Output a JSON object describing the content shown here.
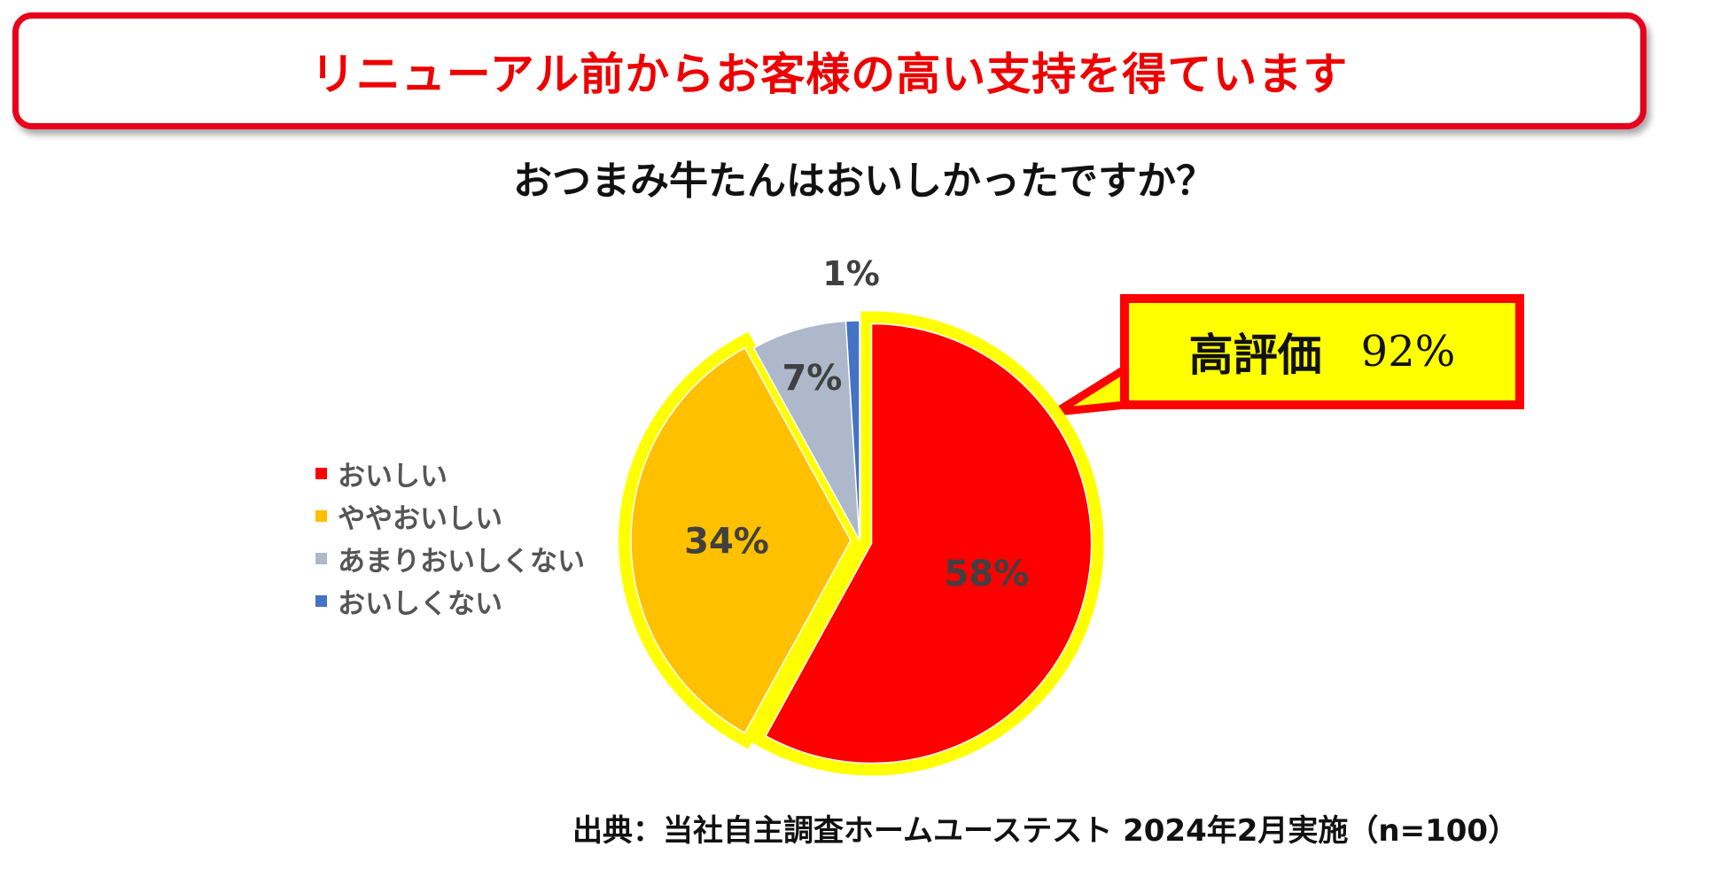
{
  "banner": {
    "text": "リニューアル前からお客様の高い支持を得ています"
  },
  "chart_data": {
    "type": "pie",
    "title": "おつまみ牛たんはおいしかったですか？",
    "slices": [
      {
        "label": "おいしい",
        "value": 58,
        "display": "58%",
        "color": "#ff0000"
      },
      {
        "label": "ややおいしい",
        "value": 34,
        "display": "34%",
        "color": "#ffc000"
      },
      {
        "label": "あまりおいしくない",
        "value": 7,
        "display": "7%",
        "color": "#adb9ca"
      },
      {
        "label": "おいしくない",
        "value": 1,
        "display": "1%",
        "color": "#4472c4"
      }
    ],
    "legend_position": "left",
    "highlight_color": "#ffff00"
  },
  "callout": {
    "label": "高評価",
    "value": "92%"
  },
  "source": {
    "text": "出典：当社自主調査ホームユーステスト 2024年2月実施（n=100）"
  }
}
